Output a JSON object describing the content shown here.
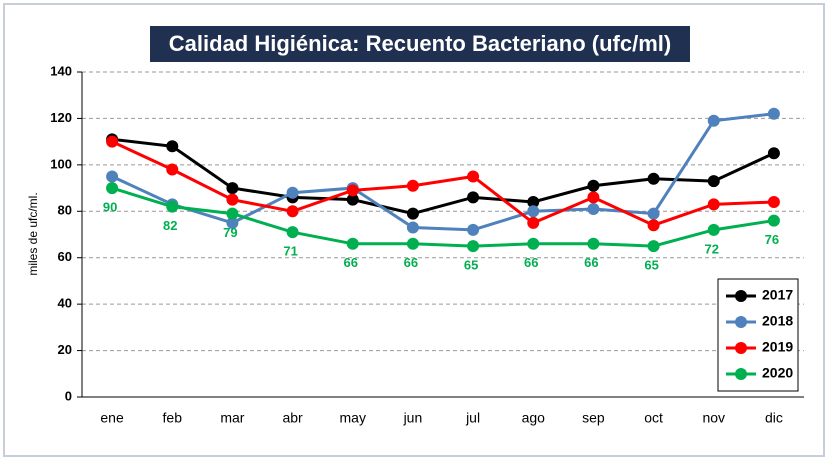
{
  "chart_data": {
    "type": "line",
    "title": "Calidad Higiénica: Recuento Bacteriano (ufc/ml)",
    "y_label": "miles de ufc/ml.",
    "categories": [
      "ene",
      "feb",
      "mar",
      "abr",
      "may",
      "jun",
      "jul",
      "ago",
      "sep",
      "oct",
      "nov",
      "dic"
    ],
    "series": [
      {
        "name": "2017",
        "color": "#000000",
        "values": [
          111,
          108,
          90,
          86,
          85,
          79,
          86,
          84,
          91,
          94,
          93,
          105
        ]
      },
      {
        "name": "2018",
        "color": "#4f81bd",
        "values": [
          95,
          83,
          75,
          88,
          90,
          73,
          72,
          80,
          81,
          79,
          119,
          122
        ]
      },
      {
        "name": "2019",
        "color": "#ff0000",
        "values": [
          110,
          98,
          85,
          80,
          89,
          91,
          95,
          75,
          86,
          74,
          83,
          84
        ]
      },
      {
        "name": "2020",
        "color": "#00b050",
        "values": [
          90,
          82,
          79,
          71,
          66,
          66,
          65,
          66,
          66,
          65,
          72,
          76
        ],
        "show_labels": true
      }
    ],
    "ylim": [
      0,
      140
    ],
    "yticks": [
      0,
      20,
      40,
      60,
      80,
      100,
      120,
      140
    ],
    "grid": true,
    "legend": "lower right"
  }
}
